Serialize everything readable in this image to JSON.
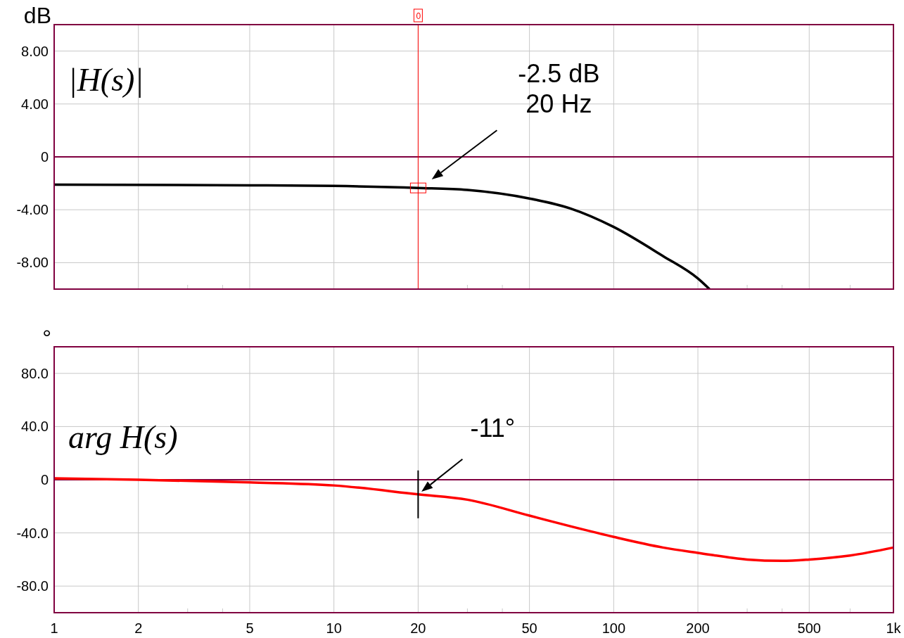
{
  "chart_data": [
    {
      "type": "line",
      "ylabel": "dB",
      "log": "x",
      "grid": true,
      "tick_labels": "y",
      "xlim": [
        1,
        1000
      ],
      "ylim": [
        -10,
        10
      ],
      "xticks": [
        1,
        2,
        5,
        10,
        20,
        50,
        100,
        200,
        500,
        1000,
        {
          "value": 3,
          "label": null
        },
        {
          "value": 4,
          "label": null
        },
        {
          "value": 30,
          "label": null
        },
        {
          "value": 40,
          "label": null
        },
        {
          "value": 300,
          "label": null
        },
        {
          "value": 400,
          "label": null
        },
        {
          "value": 700,
          "label": null
        }
      ],
      "yticks": [
        {
          "value": 8,
          "label": "8.00"
        },
        {
          "value": 4,
          "label": "4.00"
        },
        0,
        {
          "value": -4,
          "label": "-4.00"
        },
        {
          "value": -8,
          "label": "-8.00"
        }
      ],
      "x": [
        1,
        5,
        10,
        20,
        30,
        50,
        70,
        100,
        150,
        200,
        220
      ],
      "series": [
        {
          "color": "#000000",
          "values": [
            -2.1,
            -2.15,
            -2.2,
            -2.35,
            -2.5,
            -3.15,
            -3.9,
            -5.3,
            -7.5,
            -9.2,
            -10
          ]
        }
      ],
      "ref_lines": [
        {
          "axis": "y",
          "value": 0,
          "color": "#800040"
        },
        {
          "axis": "x",
          "value": 20,
          "color": "#ff0000"
        }
      ],
      "annotations": [
        "|H(s)|",
        "-2.5 dB\n20 Hz",
        "0"
      ]
    },
    {
      "type": "line",
      "ylabel": "°",
      "log": "x",
      "grid": true,
      "xlim": [
        1,
        1000
      ],
      "ylim": [
        -100,
        100
      ],
      "xticks": [
        1,
        2,
        5,
        10,
        20,
        50,
        100,
        200,
        500,
        {
          "value": 1000,
          "label": "1k"
        },
        {
          "value": 3,
          "label": null
        },
        {
          "value": 4,
          "label": null
        },
        {
          "value": 30,
          "label": null
        },
        {
          "value": 40,
          "label": null
        },
        {
          "value": 300,
          "label": null
        },
        {
          "value": 400,
          "label": null
        },
        {
          "value": 700,
          "label": null
        }
      ],
      "yticks": [
        {
          "value": 80,
          "label": "80.0"
        },
        {
          "value": 40,
          "label": "40.0"
        },
        0,
        {
          "value": -40,
          "label": "-40.0"
        },
        {
          "value": -80,
          "label": "-80.0"
        }
      ],
      "x": [
        1,
        2,
        5,
        10,
        20,
        30,
        50,
        70,
        100,
        150,
        200,
        300,
        400,
        500,
        700,
        1000
      ],
      "series": [
        {
          "color": "#ff0000",
          "values": [
            1,
            0,
            -2,
            -4.3,
            -11,
            -15,
            -27,
            -35,
            -43,
            -51,
            -55,
            -60,
            -61,
            -60,
            -57,
            -51
          ]
        }
      ],
      "ref_lines": [
        {
          "axis": "y",
          "value": 0,
          "color": "#800040"
        }
      ],
      "annotations": [
        "arg H(s)",
        {
          "text": "-11°",
          "x": 20,
          "y": -11
        }
      ]
    }
  ]
}
